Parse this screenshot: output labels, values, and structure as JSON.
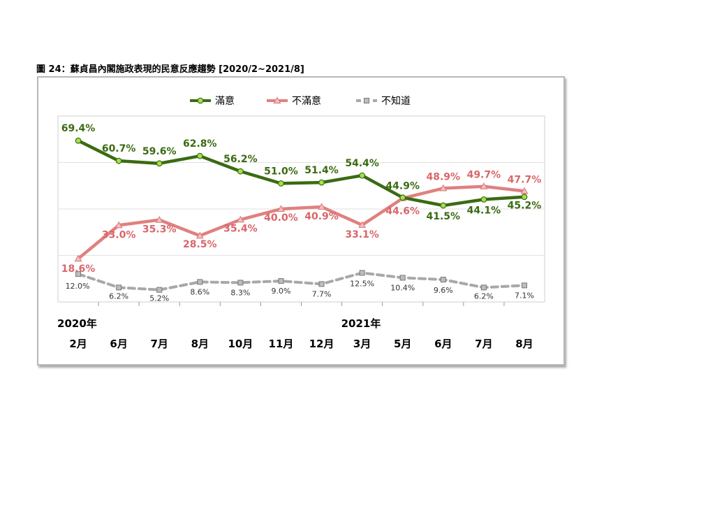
{
  "figure_title": "圖 24：蘇貞昌內閣施政表現的民意反應趨勢 [2020/2~2021/8]",
  "colors": {
    "satisfied": "#3a6b12",
    "satisfied_marker": "#a6e04a",
    "dissatisfied": "#e08080",
    "dissatisfied_label": "#d9666a",
    "unknown": "#a8a8a8",
    "unknown_label": "#333333"
  },
  "chart_data": {
    "type": "line",
    "title": "",
    "xlabel": "",
    "ylabel": "",
    "categories": [
      "2月",
      "6月",
      "7月",
      "8月",
      "10月",
      "11月",
      "12月",
      "3月",
      "5月",
      "6月",
      "7月",
      "8月"
    ],
    "year_labels": [
      {
        "text": "2020年",
        "category_index": 0
      },
      {
        "text": "2021年",
        "category_index": 7
      }
    ],
    "ylim": [
      0,
      80
    ],
    "grid": true,
    "legend_position": "top-center",
    "series": [
      {
        "name": "滿意",
        "values": [
          69.4,
          60.7,
          59.6,
          62.8,
          56.2,
          51.0,
          51.4,
          54.4,
          44.9,
          41.5,
          44.1,
          45.2
        ],
        "labels": [
          "69.4%",
          "60.7%",
          "59.6%",
          "62.8%",
          "56.2%",
          "51.0%",
          "51.4%",
          "54.4%",
          "44.9%",
          "41.5%",
          "44.1%",
          "45.2%"
        ]
      },
      {
        "name": "不滿意",
        "values": [
          18.6,
          33.0,
          35.3,
          28.5,
          35.4,
          40.0,
          40.9,
          33.1,
          44.6,
          48.9,
          49.7,
          47.7
        ],
        "labels": [
          "18.6%",
          "33.0%",
          "35.3%",
          "28.5%",
          "35.4%",
          "40.0%",
          "40.9%",
          "33.1%",
          "44.6%",
          "48.9%",
          "49.7%",
          "47.7%"
        ]
      },
      {
        "name": "不知道",
        "values": [
          12.0,
          6.2,
          5.2,
          8.6,
          8.3,
          9.0,
          7.7,
          12.5,
          10.4,
          9.6,
          6.2,
          7.1
        ],
        "labels": [
          "12.0%",
          "6.2%",
          "5.2%",
          "8.6%",
          "8.3%",
          "9.0%",
          "7.7%",
          "12.5%",
          "10.4%",
          "9.6%",
          "6.2%",
          "7.1%"
        ]
      }
    ]
  }
}
